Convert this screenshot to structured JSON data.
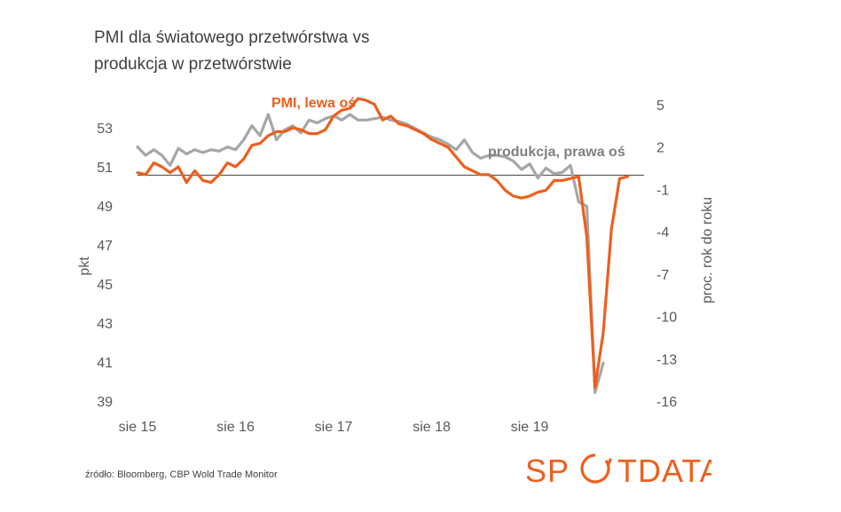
{
  "title_lines": [
    "PMI dla światowego przetwórstwa vs",
    "produkcja  w przetwórstwie"
  ],
  "source": "źródło: Bloomberg, CBP Wold Trade Monitor",
  "logo_text": "SPOTDATA",
  "colors": {
    "pmi": "#ED5F1E",
    "production": "#A6A6A6",
    "text": "#595959",
    "baseline": "#404040"
  },
  "chart_data": {
    "type": "line",
    "x_tick_labels": [
      "sie 15",
      "sie 16",
      "sie 17",
      "sie 18",
      "sie 19"
    ],
    "x_start": "2015-08",
    "x_end": "2020-10",
    "ylabel_left": "pkt",
    "ylabel_right": "proc. rok do roku",
    "ylim_left": [
      39,
      55
    ],
    "yticks_left": [
      39,
      41,
      43,
      45,
      47,
      49,
      51,
      53
    ],
    "ylim_right": [
      -16,
      7
    ],
    "yticks_right": [
      -16,
      -13,
      -10,
      -7,
      -4,
      -1,
      2,
      5
    ],
    "baseline_right": 0,
    "series": [
      {
        "name": "PMI, lewa oś",
        "axis": "left",
        "color": "#ED5F1E",
        "x": [
          "2015-08",
          "2015-09",
          "2015-10",
          "2015-11",
          "2015-12",
          "2016-01",
          "2016-02",
          "2016-03",
          "2016-04",
          "2016-05",
          "2016-06",
          "2016-07",
          "2016-08",
          "2016-09",
          "2016-10",
          "2016-11",
          "2016-12",
          "2017-01",
          "2017-02",
          "2017-03",
          "2017-04",
          "2017-05",
          "2017-06",
          "2017-07",
          "2017-08",
          "2017-09",
          "2017-10",
          "2017-11",
          "2017-12",
          "2018-01",
          "2018-02",
          "2018-03",
          "2018-04",
          "2018-05",
          "2018-06",
          "2018-07",
          "2018-08",
          "2018-09",
          "2018-10",
          "2018-11",
          "2018-12",
          "2019-01",
          "2019-02",
          "2019-03",
          "2019-04",
          "2019-05",
          "2019-06",
          "2019-07",
          "2019-08",
          "2019-09",
          "2019-10",
          "2019-11",
          "2019-12",
          "2020-01",
          "2020-02",
          "2020-03",
          "2020-04",
          "2020-05",
          "2020-06",
          "2020-07",
          "2020-08"
        ],
        "values": [
          50.7,
          50.6,
          51.2,
          51.0,
          50.7,
          51.0,
          50.2,
          50.8,
          50.3,
          50.2,
          50.6,
          51.2,
          51.0,
          51.4,
          52.1,
          52.2,
          52.6,
          52.8,
          52.8,
          53.0,
          52.9,
          52.7,
          52.7,
          52.9,
          53.6,
          53.9,
          54.0,
          54.5,
          54.4,
          54.2,
          53.4,
          53.6,
          53.2,
          53.1,
          52.9,
          52.7,
          52.4,
          52.2,
          52.0,
          51.5,
          51.0,
          50.8,
          50.6,
          50.6,
          50.3,
          49.8,
          49.5,
          49.4,
          49.5,
          49.7,
          49.8,
          50.3,
          50.3,
          50.4,
          50.5,
          47.4,
          39.7,
          42.5,
          47.8,
          50.4,
          50.5
        ]
      },
      {
        "name": "produkcja, prawa oś",
        "axis": "right",
        "color": "#A6A6A6",
        "x": [
          "2015-08",
          "2015-09",
          "2015-10",
          "2015-11",
          "2015-12",
          "2016-01",
          "2016-02",
          "2016-03",
          "2016-04",
          "2016-05",
          "2016-06",
          "2016-07",
          "2016-08",
          "2016-09",
          "2016-10",
          "2016-11",
          "2016-12",
          "2017-01",
          "2017-02",
          "2017-03",
          "2017-04",
          "2017-05",
          "2017-06",
          "2017-07",
          "2017-08",
          "2017-09",
          "2017-10",
          "2017-11",
          "2017-12",
          "2018-01",
          "2018-02",
          "2018-03",
          "2018-04",
          "2018-05",
          "2018-06",
          "2018-07",
          "2018-08",
          "2018-09",
          "2018-10",
          "2018-11",
          "2018-12",
          "2019-01",
          "2019-02",
          "2019-03",
          "2019-04",
          "2019-05",
          "2019-06",
          "2019-07",
          "2019-08",
          "2019-09",
          "2019-10",
          "2019-11",
          "2019-12",
          "2020-01",
          "2020-02",
          "2020-03",
          "2020-04",
          "2020-05"
        ],
        "values": [
          2.0,
          1.4,
          1.8,
          1.4,
          0.7,
          1.9,
          1.5,
          1.8,
          1.6,
          1.8,
          1.7,
          2.0,
          1.8,
          2.5,
          3.5,
          2.8,
          4.3,
          2.5,
          3.2,
          3.5,
          3.0,
          3.9,
          3.7,
          4.0,
          4.2,
          3.9,
          4.3,
          3.9,
          3.9,
          4.0,
          4.1,
          3.9,
          3.8,
          3.6,
          3.3,
          3.0,
          2.7,
          2.5,
          2.2,
          1.8,
          2.5,
          1.6,
          1.2,
          1.4,
          1.4,
          1.3,
          1.0,
          0.4,
          0.8,
          -0.2,
          0.5,
          0.1,
          0.2,
          0.7,
          -1.9,
          -2.2,
          -15.4,
          -13.3
        ]
      }
    ],
    "annotations": [
      {
        "text": "PMI, lewa oś",
        "series": 0
      },
      {
        "text": "produkcja,  prawa oś",
        "series": 1
      }
    ]
  }
}
